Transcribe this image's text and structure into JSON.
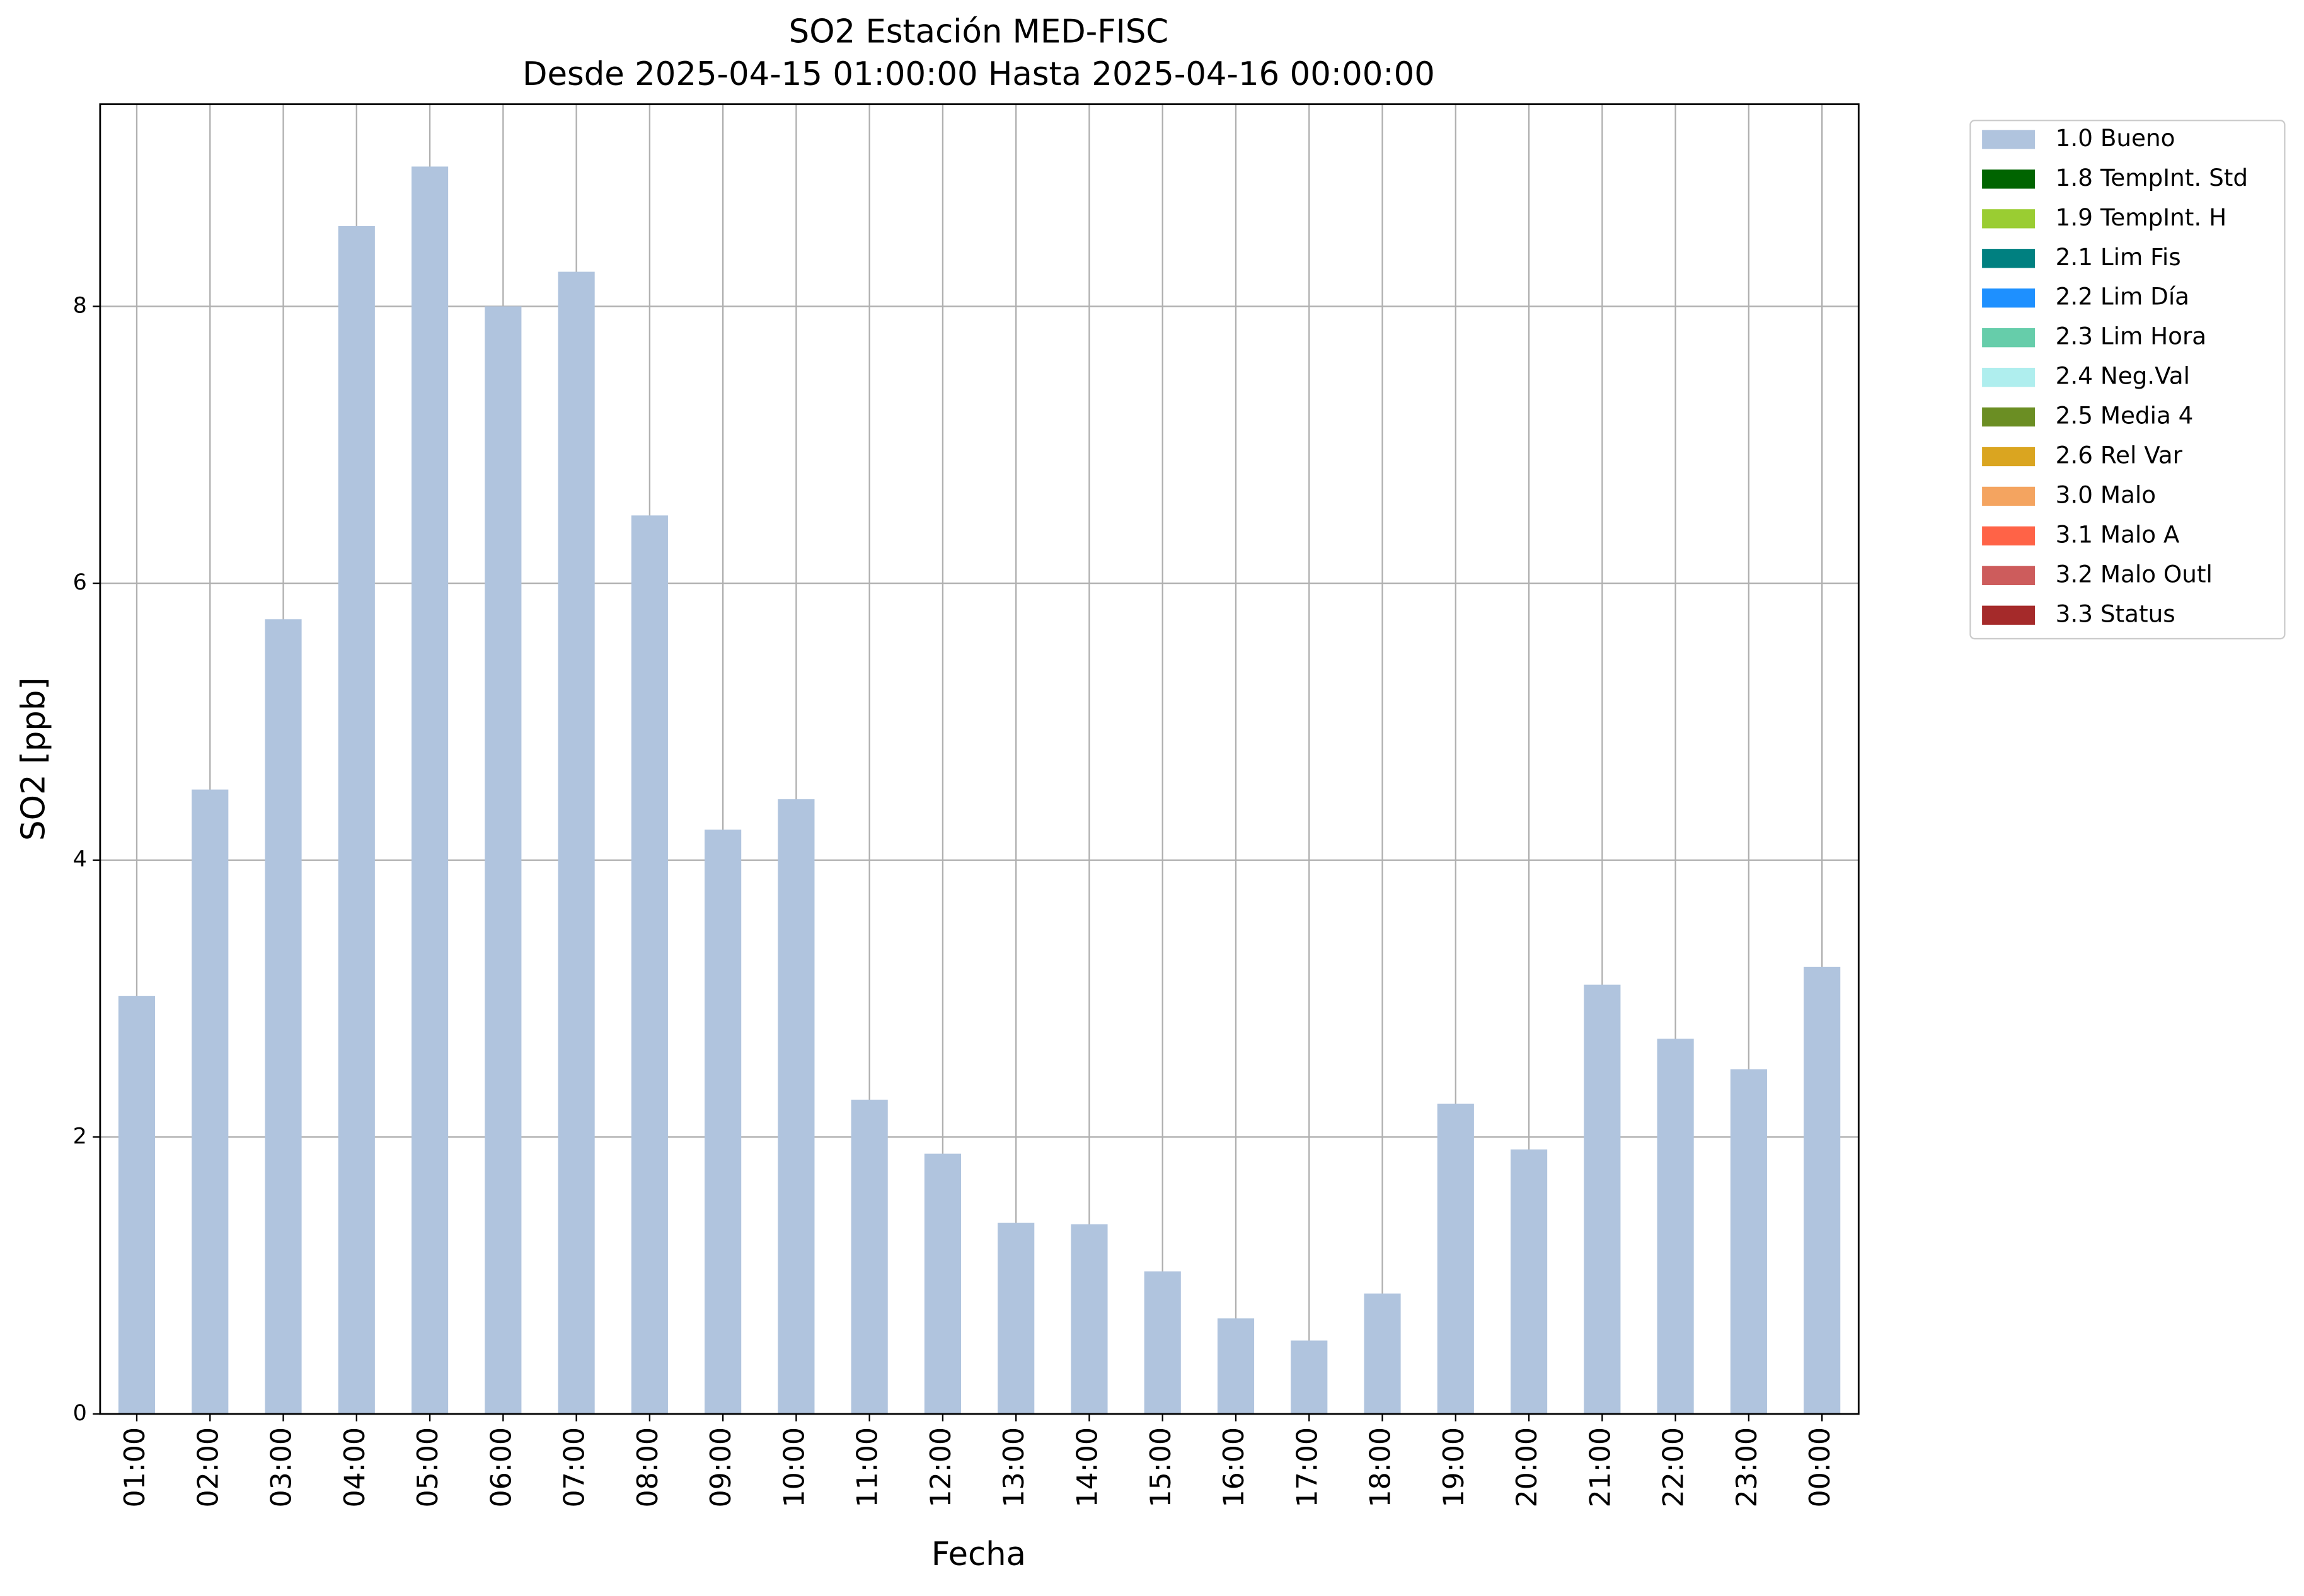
{
  "chart_data": {
    "type": "bar",
    "title": "SO2 Estación MED-FISC",
    "subtitle": "Desde 2025-04-15 01:00:00 Hasta 2025-04-16 00:00:00",
    "xlabel": "Fecha",
    "ylabel": "SO2 [ppb]",
    "categories": [
      "01:00",
      "02:00",
      "03:00",
      "04:00",
      "05:00",
      "06:00",
      "07:00",
      "08:00",
      "09:00",
      "10:00",
      "11:00",
      "12:00",
      "13:00",
      "14:00",
      "15:00",
      "16:00",
      "17:00",
      "18:00",
      "19:00",
      "20:00",
      "21:00",
      "22:00",
      "23:00",
      "00:00"
    ],
    "series": [
      {
        "name": "1.0 Bueno",
        "color": "#b0c4de",
        "values": [
          3.02,
          4.51,
          5.74,
          8.58,
          9.01,
          8.0,
          8.25,
          6.49,
          4.22,
          4.44,
          2.27,
          1.88,
          1.38,
          1.37,
          1.03,
          0.69,
          0.53,
          0.87,
          2.24,
          1.91,
          3.1,
          2.71,
          2.49,
          3.23
        ]
      }
    ],
    "legend_entries": [
      {
        "name": "1.8 TempInt. Std",
        "color": "#006400"
      },
      {
        "name": "1.9 TempInt. H",
        "color": "#9acd32"
      },
      {
        "name": "2.1 Lim Fis",
        "color": "#008080"
      },
      {
        "name": "2.2 Lim Día",
        "color": "#1e90ff"
      },
      {
        "name": "2.3 Lim Hora",
        "color": "#66cdaa"
      },
      {
        "name": "2.4 Neg.Val",
        "color": "#afeeee"
      },
      {
        "name": "2.5 Media 4",
        "color": "#6b8e23"
      },
      {
        "name": "2.6 Rel Var",
        "color": "#daa520"
      },
      {
        "name": "3.0 Malo",
        "color": "#f4a460"
      },
      {
        "name": "3.1 Malo A",
        "color": "#ff6347"
      },
      {
        "name": "3.2 Malo Outl",
        "color": "#cd5c5c"
      },
      {
        "name": "3.3 Status",
        "color": "#a52a2a"
      }
    ],
    "ylim": [
      0,
      9.46
    ],
    "yticks": [
      0,
      2,
      4,
      6,
      8
    ],
    "grid": true,
    "legend_position": "outside-upper-right"
  }
}
